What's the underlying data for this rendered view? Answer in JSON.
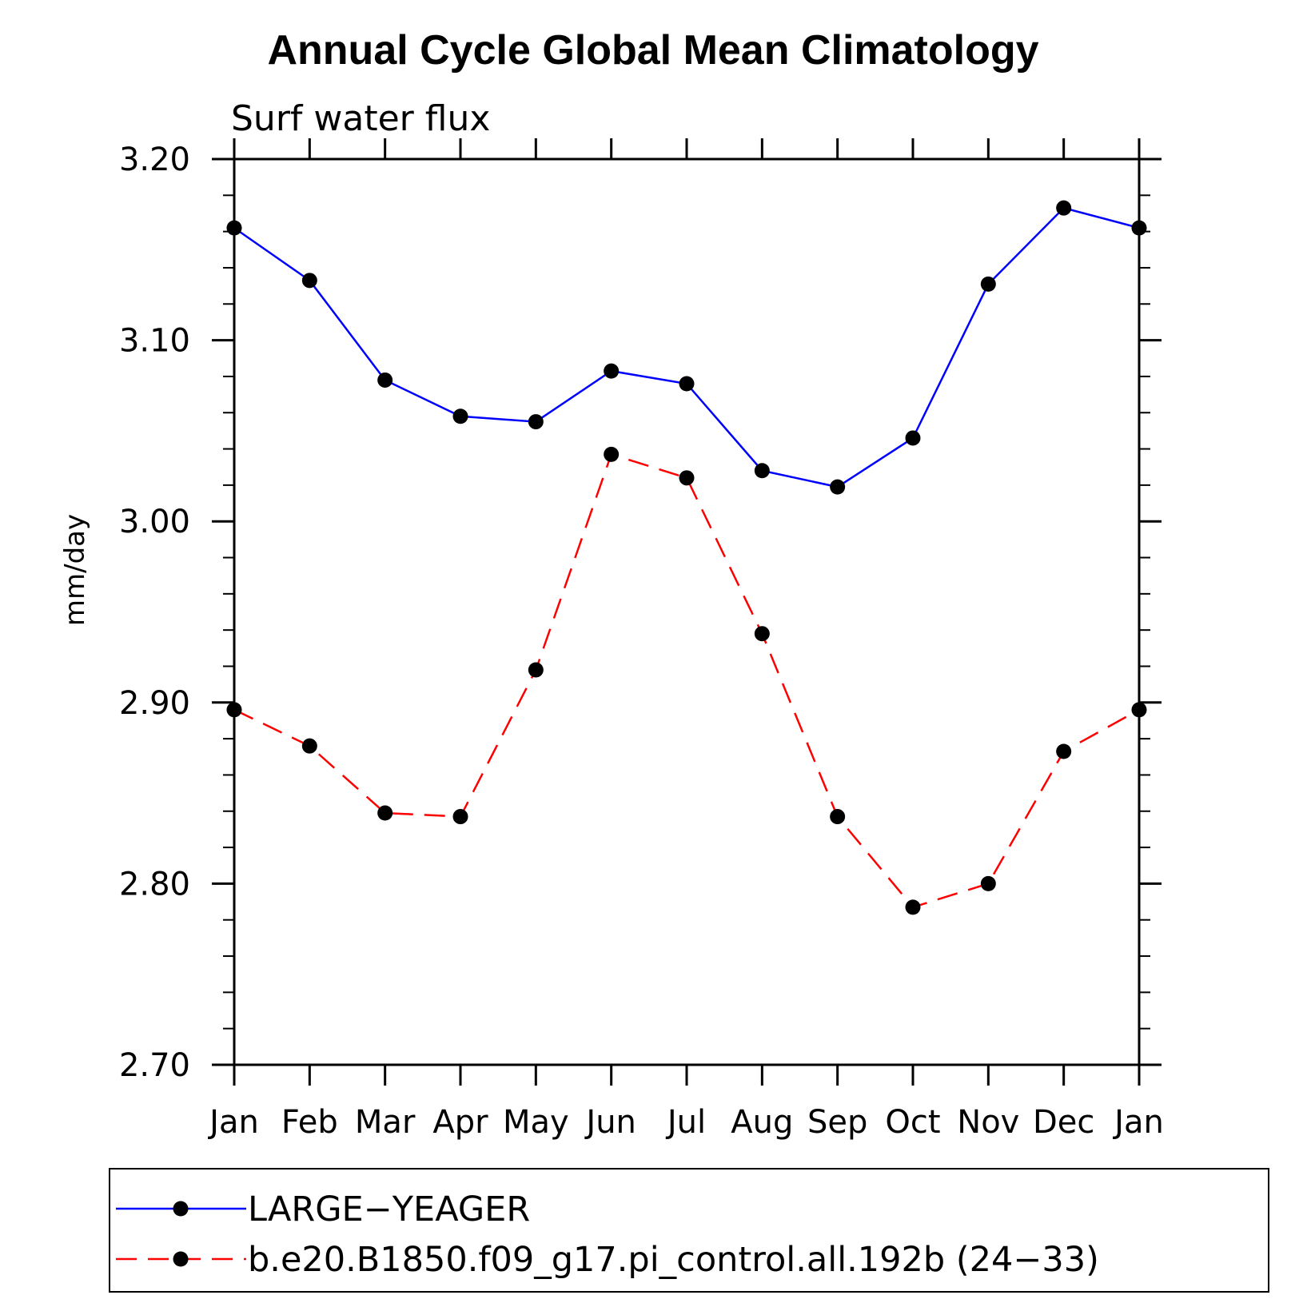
{
  "chart_data": {
    "type": "line",
    "title": "Annual Cycle Global Mean Climatology",
    "subtitle": "Surf water flux",
    "xlabel": "",
    "ylabel": "mm/day",
    "categories": [
      "Jan",
      "Feb",
      "Mar",
      "Apr",
      "May",
      "Jun",
      "Jul",
      "Aug",
      "Sep",
      "Oct",
      "Nov",
      "Dec",
      "Jan"
    ],
    "ylim": [
      2.7,
      3.2
    ],
    "yticks": [
      "2.70",
      "2.80",
      "2.90",
      "3.00",
      "3.10",
      "3.20"
    ],
    "grid": false,
    "legend_position": "bottom",
    "series": [
      {
        "name": "LARGE−YEAGER",
        "color": "#0000ff",
        "line_style": "solid",
        "marker": "filled-circle",
        "values": [
          3.162,
          3.133,
          3.078,
          3.058,
          3.055,
          3.083,
          3.076,
          3.028,
          3.019,
          3.046,
          3.131,
          3.173,
          3.162
        ]
      },
      {
        "name": "b.e20.B1850.f09_g17.pi_control.all.192b (24−33)",
        "color": "#ff0000",
        "line_style": "dashed",
        "marker": "filled-circle",
        "values": [
          2.896,
          2.876,
          2.839,
          2.837,
          2.918,
          3.037,
          3.024,
          2.938,
          2.837,
          2.787,
          2.8,
          2.873,
          2.896
        ]
      }
    ]
  }
}
